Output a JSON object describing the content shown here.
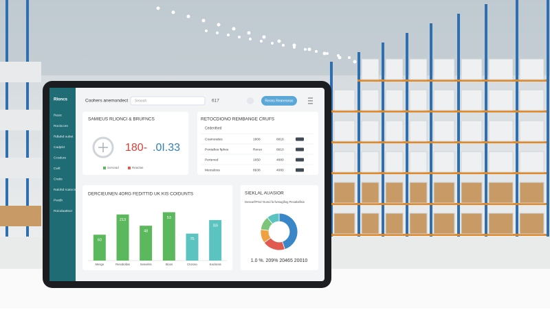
{
  "sidebar": {
    "brand": "Rloncs",
    "items": [
      "Resic",
      "Rocticcen",
      "Rdlahd oubst",
      "Cadplct",
      "Ccodure",
      "Cwft",
      "Cratts",
      "Ralohd rcatocn",
      "Pwidh",
      "Roiodaattsor"
    ]
  },
  "topbar": {
    "title": "Coohers anemondect",
    "search": "Seaoah",
    "value": "617",
    "button": "Reons Reaneseas"
  },
  "summary": {
    "title": "SAMIEUS RLIONCI & BRUFNCS",
    "kpi_part1": "180-",
    "kpi_part2": ".0I.33",
    "legend": [
      "Sorcead",
      "Reaclae"
    ]
  },
  "table": {
    "title": "RETOCDIONO REMBANGE CRUFS",
    "header": "Cedenthed",
    "rows": [
      [
        "Coamosdes",
        "1808",
        "6818"
      ],
      [
        "Pontaftos fiphes",
        "Reruo",
        "6810"
      ],
      [
        "Pertened",
        "1650",
        "4880"
      ],
      [
        "Meosdoss",
        "8938",
        "4080"
      ]
    ]
  },
  "bar_chart": {
    "type": "bar",
    "title": "DERCIEUNEN 4ORG FEDITTID UK KIS COIDUNTS",
    "categories": [
      "Mesgo",
      "Resobollas",
      "Sesvelss",
      "Sloos",
      "Ctoroso",
      "Kaclonss"
    ],
    "values": [
      46,
      82,
      62,
      86,
      48,
      72
    ],
    "bar_texts": [
      "60",
      "213",
      "48",
      "53",
      "75",
      "33i"
    ],
    "colors": [
      "#5cb85c",
      "#5cb85c",
      "#5cb85c",
      "#5cb85c",
      "#5bc4c0",
      "#5bc4c0"
    ],
    "ylim": [
      0,
      100
    ]
  },
  "donut": {
    "type": "pie",
    "title": "SIEKLAL AUASIOR",
    "subtitle": "Desearf/Pmd 'Dumd fa fwmagifiog Pecatlatfisis",
    "values": [
      45,
      20,
      12,
      12,
      11
    ],
    "colors": [
      "#3a87c8",
      "#e05a50",
      "#f0a040",
      "#7cc47a",
      "#5bc4c0"
    ],
    "footer": "1.0 %. 209% 20465 20010"
  }
}
